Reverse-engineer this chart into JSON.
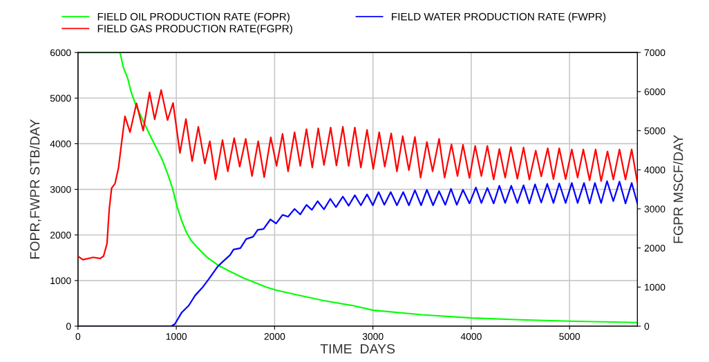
{
  "chart_data": {
    "type": "line",
    "xlabel": "TIME  DAYS",
    "ylabel": "FOPR,FWPR STB/DAY",
    "y2label": "FGPR MSCF/DAY",
    "xlim": [
      0,
      5690
    ],
    "xticks": [
      0,
      1000,
      2000,
      3000,
      4000,
      5000
    ],
    "ylim": [
      0,
      6000
    ],
    "yticks": [
      0,
      1000,
      2000,
      3000,
      4000,
      5000,
      6000
    ],
    "y2lim": [
      0,
      7000
    ],
    "y2ticks": [
      0,
      1000,
      2000,
      3000,
      4000,
      5000,
      6000,
      7000
    ],
    "grid": true,
    "legend": "top",
    "marker": "none",
    "line_style": "solid",
    "series": [
      {
        "name": "FIELD OIL PRODUCTION RATE (FOPR)",
        "color": "#00ff00",
        "x": [
          0,
          428,
          459,
          506,
          541,
          588,
          658,
          716,
          787,
          857,
          915,
          962,
          1009,
          1055,
          1102,
          1150,
          1220,
          1313,
          1430,
          1547,
          1688,
          1828,
          1922,
          2015,
          2200,
          2500,
          2800,
          3000,
          3500,
          4000,
          4500,
          5000,
          5690
        ],
        "values": [
          6000,
          6000,
          5690,
          5430,
          5130,
          4850,
          4520,
          4260,
          3950,
          3650,
          3320,
          3020,
          2610,
          2310,
          2060,
          1880,
          1710,
          1510,
          1330,
          1200,
          1050,
          930,
          850,
          790,
          700,
          560,
          450,
          350,
          250,
          180,
          140,
          110,
          80
        ]
      },
      {
        "name": "FIELD WATER PRODUCTION RATE (FWPR)",
        "color": "#0000ff",
        "x": [
          0,
          950,
          985,
          1055,
          1126,
          1192,
          1267,
          1336,
          1418,
          1466,
          1547,
          1582,
          1652,
          1711,
          1781,
          1828,
          1887,
          1957,
          2015,
          2081,
          2137,
          2203,
          2261,
          2324,
          2379,
          2437,
          2502,
          2566,
          2624,
          2694,
          2753,
          2816,
          2877,
          2940,
          2999,
          3058,
          3116,
          3181,
          3244,
          3308,
          3366,
          3427,
          3490,
          3549,
          3612,
          3673,
          3736,
          3794,
          3853,
          3916,
          3982,
          4047,
          4103,
          4164,
          4228,
          4286,
          4345,
          4407,
          4469,
          4532,
          4591,
          4649,
          4712,
          4773,
          4836,
          4895,
          4960,
          5023,
          5082,
          5147,
          5204,
          5258,
          5321,
          5381,
          5445,
          5508,
          5569,
          5632,
          5690
        ],
        "values": [
          0,
          0,
          45,
          300,
          450,
          675,
          850,
          1050,
          1300,
          1400,
          1560,
          1680,
          1710,
          1910,
          1960,
          2110,
          2130,
          2340,
          2250,
          2440,
          2400,
          2570,
          2450,
          2660,
          2550,
          2740,
          2560,
          2790,
          2610,
          2840,
          2640,
          2870,
          2650,
          2890,
          2650,
          2940,
          2660,
          2940,
          2650,
          2940,
          2650,
          2980,
          2650,
          2990,
          2650,
          2960,
          2660,
          3010,
          2660,
          2990,
          2690,
          3040,
          2700,
          3030,
          2690,
          3080,
          2700,
          3080,
          2700,
          3090,
          2690,
          3110,
          2710,
          3120,
          2700,
          3130,
          2700,
          3140,
          2700,
          3140,
          2690,
          3140,
          2700,
          3180,
          2740,
          3170,
          2690,
          3140,
          2690
        ]
      },
      {
        "name": "FIELD GAS PRODUCTION RATE(FGPR)",
        "color": "#ff0000",
        "axis": "y2",
        "x": [
          0,
          50,
          155,
          225,
          260,
          295,
          318,
          342,
          377,
          412,
          447,
          478,
          529,
          595,
          663,
          728,
          780,
          846,
          911,
          967,
          1037,
          1098,
          1161,
          1224,
          1290,
          1341,
          1400,
          1470,
          1524,
          1589,
          1645,
          1706,
          1770,
          1833,
          1894,
          1961,
          2020,
          2081,
          2137,
          2203,
          2261,
          2324,
          2383,
          2444,
          2502,
          2570,
          2629,
          2694,
          2753,
          2816,
          2877,
          2940,
          3003,
          3064,
          3120,
          3186,
          3244,
          3303,
          3366,
          3427,
          3485,
          3549,
          3607,
          3673,
          3729,
          3799,
          3860,
          3916,
          3982,
          4040,
          4103,
          4164,
          4228,
          4286,
          4345,
          4403,
          4469,
          4532,
          4591,
          4656,
          4712,
          4778,
          4836,
          4895,
          4960,
          5023,
          5082,
          5140,
          5204,
          5265,
          5321,
          5386,
          5445,
          5508,
          5569,
          5632,
          5690
        ],
        "values": [
          1790,
          1700,
          1760,
          1730,
          1790,
          2110,
          2990,
          3530,
          3650,
          4050,
          4760,
          5370,
          4960,
          5700,
          5000,
          5980,
          5290,
          6040,
          5270,
          5710,
          4430,
          5300,
          4220,
          5100,
          4160,
          4730,
          3750,
          4760,
          3960,
          4810,
          4080,
          4790,
          3840,
          4730,
          3810,
          4830,
          4100,
          4920,
          3960,
          4960,
          4100,
          5040,
          4060,
          5060,
          4120,
          5080,
          4110,
          5100,
          4100,
          5080,
          4060,
          5020,
          4020,
          4960,
          4080,
          4930,
          3960,
          4860,
          3990,
          4840,
          3800,
          4710,
          3960,
          4790,
          3800,
          4650,
          3840,
          4640,
          3790,
          4610,
          3840,
          4610,
          3750,
          4530,
          3800,
          4580,
          3770,
          4570,
          3750,
          4490,
          3830,
          4550,
          3760,
          4550,
          3760,
          4520,
          3800,
          4520,
          3730,
          4520,
          3710,
          4470,
          3750,
          4520,
          3750,
          4520,
          3670
        ]
      }
    ]
  }
}
